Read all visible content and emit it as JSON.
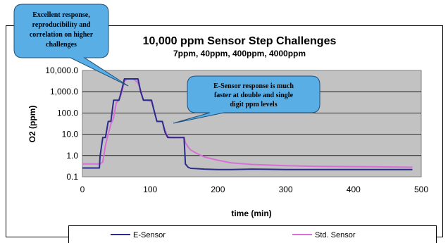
{
  "chart_data": {
    "type": "line",
    "title": "10,000 ppm Sensor Step Challenges",
    "subtitle": "7ppm, 40ppm, 400ppm, 4000ppm",
    "xlabel": "time (min)",
    "ylabel": "O2 (ppm)",
    "xlim": [
      0,
      500
    ],
    "ylim": [
      0.1,
      10000
    ],
    "yscale": "log",
    "grid": "horizontal",
    "x_ticks": [
      "0",
      "100",
      "200",
      "300",
      "400",
      "500"
    ],
    "y_ticks": [
      "0.1",
      "1.0",
      "10.0",
      "100.0",
      "1,000.0",
      "10,000.0"
    ],
    "legend_position": "bottom",
    "series": [
      {
        "name": "E-Sensor",
        "color": "#2b2b8c",
        "x": [
          0,
          25,
          26,
          30,
          34,
          38,
          42,
          46,
          50,
          54,
          58,
          62,
          66,
          70,
          74,
          78,
          82,
          86,
          90,
          94,
          98,
          102,
          106,
          110,
          114,
          118,
          122,
          126,
          130,
          134,
          138,
          142,
          146,
          150,
          152,
          156,
          160,
          170,
          180,
          200,
          220,
          250,
          300,
          350,
          400,
          450,
          487
        ],
        "values": [
          0.26,
          0.26,
          0.9,
          7,
          7,
          40,
          40,
          400,
          400,
          400,
          1200,
          4000,
          4000,
          4000,
          4000,
          4000,
          4000,
          1000,
          400,
          400,
          400,
          400,
          120,
          40,
          40,
          40,
          12,
          7,
          7,
          7,
          7,
          7,
          7,
          7,
          0.4,
          0.28,
          0.25,
          0.24,
          0.23,
          0.22,
          0.22,
          0.23,
          0.22,
          0.22,
          0.22,
          0.22,
          0.22
        ]
      },
      {
        "name": "Std. Sensor",
        "color": "#d86fd8",
        "x": [
          0,
          25,
          26,
          30,
          34,
          38,
          42,
          46,
          50,
          54,
          58,
          62,
          66,
          70,
          74,
          78,
          82,
          86,
          90,
          94,
          98,
          102,
          106,
          110,
          114,
          118,
          122,
          126,
          130,
          134,
          138,
          142,
          146,
          150,
          152,
          156,
          160,
          170,
          180,
          200,
          220,
          250,
          300,
          350,
          400,
          450,
          487
        ],
        "values": [
          0.4,
          0.4,
          0.4,
          0.5,
          3,
          10,
          30,
          60,
          300,
          400,
          900,
          3000,
          4000,
          4000,
          4000,
          3500,
          2500,
          1200,
          400,
          400,
          380,
          350,
          120,
          40,
          40,
          38,
          15,
          8,
          7,
          7,
          7,
          7,
          7,
          7,
          4,
          2.5,
          1.8,
          1.2,
          0.85,
          0.6,
          0.45,
          0.38,
          0.33,
          0.31,
          0.3,
          0.29,
          0.28
        ]
      }
    ],
    "annotations": [
      "Excellent response, reproducibility and correlation on higher challenges",
      "E-Sensor response is much faster at double and single digit ppm levels"
    ]
  },
  "colors": {
    "plot_background": "#c2c2c2",
    "callout_fill": "#5aaee6"
  }
}
